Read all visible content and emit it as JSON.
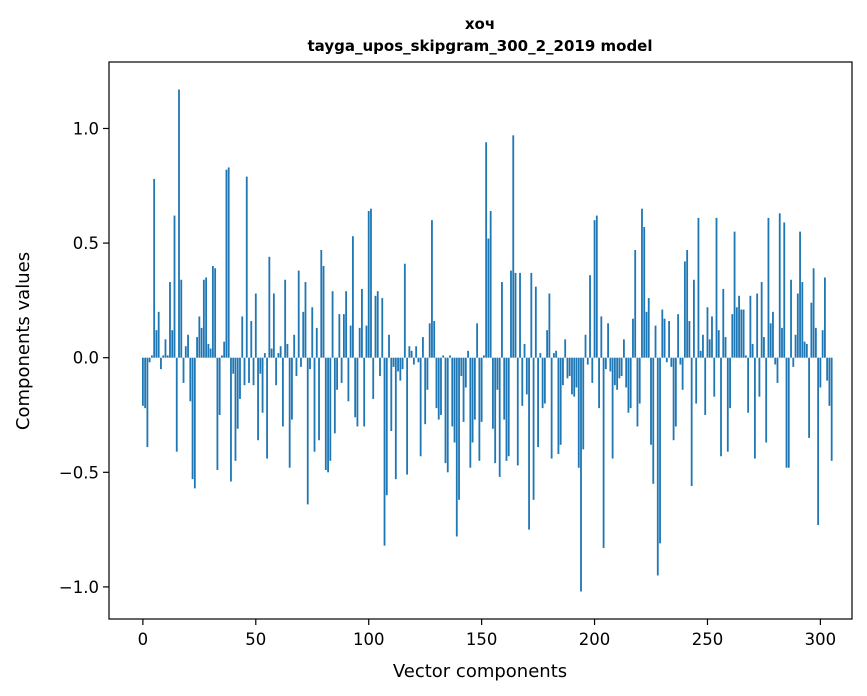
{
  "chart_data": {
    "type": "bar",
    "title": "хоч",
    "subtitle": "tayga_upos_skipgram_300_2_2019 model",
    "xlabel": "Vector components",
    "ylabel": "Components values",
    "xlim": [
      -15,
      314
    ],
    "ylim": [
      -1.14,
      1.29
    ],
    "xticks": [
      0,
      50,
      100,
      150,
      200,
      250,
      300
    ],
    "yticks": [
      -1.0,
      -0.5,
      0.0,
      0.5,
      1.0
    ],
    "ytick_labels": [
      "−1.0",
      "−0.5",
      "0.0",
      "0.5",
      "1.0"
    ],
    "grid": false,
    "legend": "none",
    "bar_color": "#1f77b4",
    "values": [
      -0.21,
      -0.22,
      -0.39,
      -0.02,
      0.01,
      0.78,
      0.12,
      0.2,
      -0.05,
      0.01,
      0.08,
      0.01,
      0.33,
      0.12,
      0.62,
      -0.41,
      1.17,
      0.34,
      -0.11,
      0.05,
      0.1,
      -0.19,
      -0.53,
      -0.57,
      0.09,
      0.18,
      0.13,
      0.34,
      0.35,
      0.06,
      0.04,
      0.4,
      0.39,
      -0.49,
      -0.25,
      0.01,
      0.07,
      0.82,
      0.83,
      -0.54,
      -0.07,
      -0.45,
      -0.31,
      -0.18,
      0.18,
      -0.12,
      0.79,
      -0.11,
      0.16,
      -0.12,
      0.28,
      -0.36,
      -0.07,
      -0.24,
      0.02,
      -0.44,
      0.44,
      0.04,
      0.28,
      -0.12,
      0.02,
      0.05,
      -0.3,
      0.34,
      0.06,
      -0.48,
      -0.27,
      0.1,
      -0.08,
      0.38,
      -0.04,
      0.2,
      0.33,
      -0.64,
      -0.05,
      0.22,
      -0.41,
      0.13,
      -0.36,
      0.47,
      0.4,
      -0.49,
      -0.5,
      -0.45,
      0.29,
      -0.33,
      -0.14,
      0.19,
      -0.11,
      0.19,
      0.29,
      -0.19,
      0.14,
      0.53,
      -0.26,
      -0.3,
      0.13,
      0.3,
      -0.3,
      0.14,
      0.64,
      0.65,
      -0.18,
      0.27,
      0.29,
      -0.08,
      0.26,
      -0.82,
      -0.6,
      0.1,
      -0.32,
      -0.04,
      -0.53,
      -0.06,
      -0.1,
      -0.05,
      0.41,
      -0.51,
      0.05,
      0.03,
      -0.03,
      0.05,
      -0.02,
      -0.43,
      0.09,
      -0.29,
      -0.14,
      0.15,
      0.6,
      0.16,
      -0.22,
      -0.27,
      -0.25,
      0.01,
      -0.46,
      -0.5,
      0.01,
      -0.3,
      -0.37,
      -0.78,
      -0.62,
      -0.08,
      -0.28,
      -0.13,
      0.03,
      -0.48,
      -0.37,
      -0.27,
      0.15,
      -0.45,
      -0.28,
      0.01,
      0.94,
      0.52,
      0.64,
      -0.31,
      -0.46,
      -0.14,
      -0.52,
      0.33,
      -0.27,
      -0.45,
      -0.43,
      0.38,
      0.97,
      0.37,
      -0.47,
      0.37,
      -0.21,
      0.06,
      -0.16,
      -0.75,
      0.37,
      -0.62,
      0.31,
      -0.39,
      0.02,
      -0.22,
      -0.2,
      0.12,
      0.28,
      -0.44,
      0.02,
      0.03,
      -0.42,
      -0.38,
      -0.12,
      0.08,
      -0.09,
      -0.08,
      -0.16,
      -0.17,
      -0.13,
      -0.48,
      -1.02,
      -0.4,
      0.1,
      -0.03,
      0.36,
      -0.11,
      0.6,
      0.62,
      -0.22,
      0.18,
      -0.83,
      -0.05,
      0.15,
      -0.06,
      -0.44,
      -0.12,
      -0.14,
      -0.09,
      -0.08,
      0.08,
      -0.13,
      -0.24,
      -0.22,
      0.17,
      0.47,
      -0.3,
      -0.2,
      0.65,
      0.57,
      0.2,
      0.26,
      -0.38,
      -0.55,
      0.14,
      -0.95,
      -0.81,
      0.21,
      0.17,
      -0.02,
      0.16,
      -0.04,
      -0.36,
      -0.3,
      0.19,
      -0.03,
      -0.14,
      0.42,
      0.47,
      0.16,
      -0.56,
      0.34,
      -0.2,
      0.61,
      0.03,
      0.1,
      -0.25,
      0.22,
      0.08,
      0.18,
      -0.17,
      0.61,
      0.12,
      -0.43,
      0.3,
      0.09,
      -0.41,
      -0.22,
      0.19,
      0.55,
      0.22,
      0.27,
      0.21,
      0.21,
      0.01,
      -0.24,
      0.27,
      0.06,
      -0.44,
      0.28,
      -0.17,
      0.33,
      0.09,
      -0.37,
      0.61,
      0.15,
      0.2,
      -0.03,
      -0.11,
      0.63,
      0.13,
      0.59,
      -0.48,
      -0.48,
      0.34,
      -0.04,
      0.1,
      0.28,
      0.55,
      0.33,
      0.07,
      0.06,
      -0.35,
      0.24,
      0.39,
      0.13,
      -0.73,
      -0.13,
      0.12,
      0.35,
      -0.1,
      -0.21,
      -0.45
    ]
  }
}
